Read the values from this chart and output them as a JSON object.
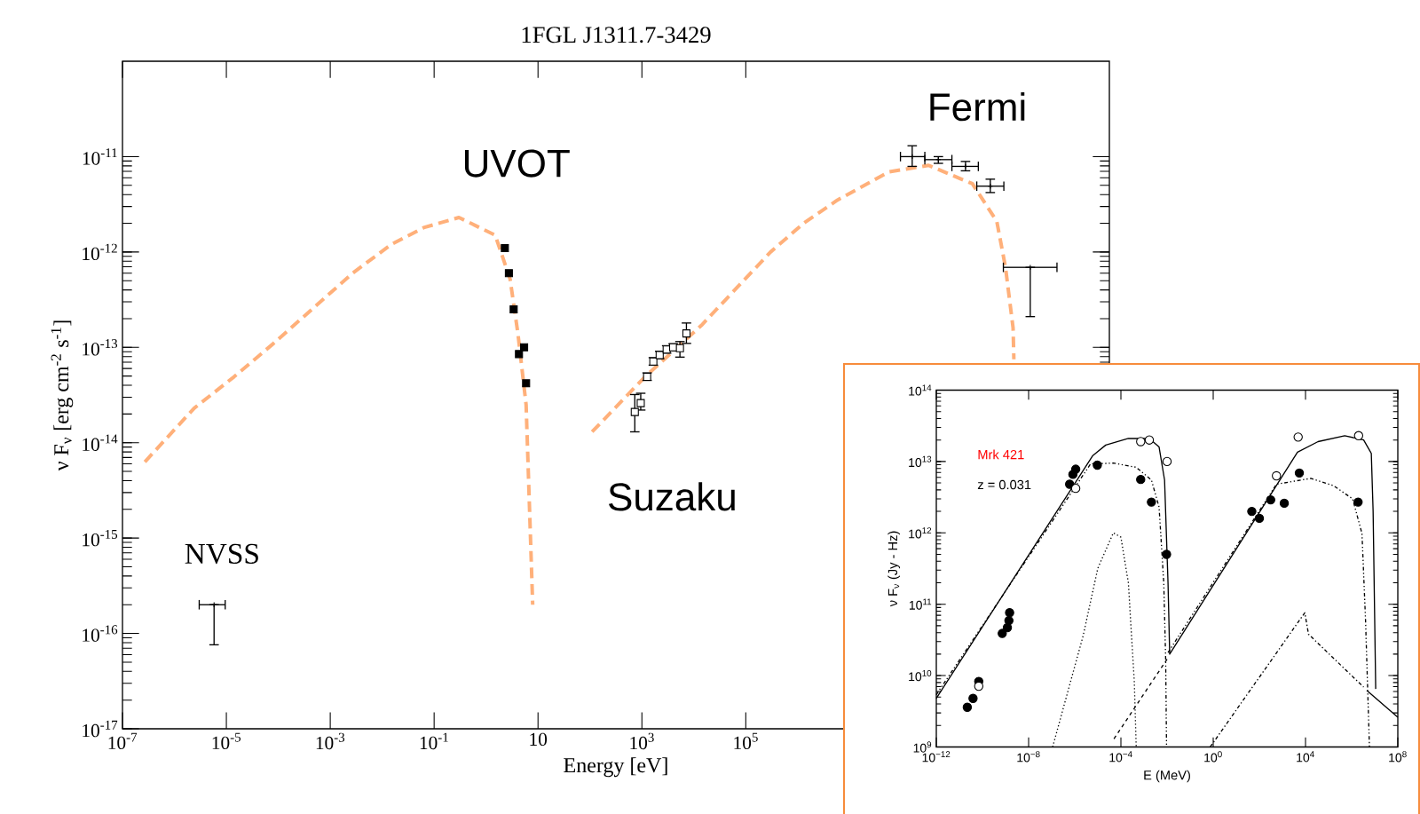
{
  "chart_data": [
    {
      "type": "scatter",
      "title": "1FGL J1311.7-3429",
      "xlabel": "Energy [eV]",
      "ylabel": "ν F$_{ν}$ [erg cm$^{-2}$ s$^{-1}$]",
      "log": "xy",
      "xlim": [
        1e-07,
        1000000000000.0
      ],
      "ylim": [
        1e-17,
        1e-10
      ],
      "xticks": [
        {
          "value": 1e-07,
          "label": "10$^{-7}$"
        },
        {
          "value": 1e-05,
          "label": "10$^{-5}$"
        },
        {
          "value": 0.001,
          "label": "10$^{-3}$"
        },
        {
          "value": 0.1,
          "label": "10$^{-1}$"
        },
        10,
        {
          "value": 1000.0,
          "label": "10$^{3}$"
        },
        {
          "value": 100000.0,
          "label": "10$^{5}$"
        }
      ],
      "yticks": [
        {
          "value": 1e-17,
          "label": "10$^{-17}$"
        },
        {
          "value": 1e-16,
          "label": "10$^{-16}$"
        },
        {
          "value": 1e-15,
          "label": "10$^{-15}$"
        },
        {
          "value": 1e-14,
          "label": "10$^{-14}$"
        },
        {
          "value": 1e-13,
          "label": "10$^{-13}$"
        },
        {
          "value": 1e-12,
          "label": "10$^{-12}$"
        },
        {
          "value": 1e-11,
          "label": "10$^{-11}$"
        }
      ],
      "annotations": [
        "UVOT",
        "Suzaku",
        "Fermi",
        "NVSS"
      ],
      "series": [
        {
          "type": "line",
          "color": "#ffb07a",
          "line_style": "dashed",
          "marker": "none",
          "x": [
            2.7e-07,
            2.4e-06,
            1.4e-05,
            8.1e-05,
            0.0027,
            0.015,
            0.063,
            0.3,
            1.5,
            2.9,
            4.1,
            5.9,
            7.9,
            null,
            110,
            1100,
            14000.0,
            300000.0,
            1300000.0,
            5800000.0,
            56000000.0,
            330000000.0,
            2300000000.0,
            6800000000.0,
            10000000000.0,
            14000000000.0,
            14500000000.0
          ],
          "values": [
            6.3e-15,
            2.3e-14,
            4.9e-14,
            1.1e-13,
            6e-13,
            1.2e-12,
            1.8e-12,
            2.3e-12,
            1.5e-12,
            5.2e-13,
            1.4e-13,
            2.5e-14,
            2e-16,
            null,
            1.3e-14,
            4.8e-14,
            1.7e-13,
            1e-12,
            2e-12,
            3.5e-12,
            6.9e-12,
            8.1e-12,
            5.2e-12,
            2.1e-12,
            6.9e-13,
            1.6e-13,
            7.5e-14
          ]
        },
        {
          "color": "#000000",
          "marker": "square",
          "x": [
            2.3,
            2.75,
            3.4,
            5.4,
            4.3,
            5.9
          ],
          "values": [
            1.1e-12,
            6e-13,
            2.5e-13,
            1e-13,
            8.5e-14,
            4.2e-14
          ]
        },
        {
          "color": "#ffffff",
          "marker": "square",
          "x": [
            730,
            950,
            1260,
            1660,
            2200,
            3000,
            4000,
            5400,
            7200
          ],
          "values": [
            2.1e-14,
            2.6e-14,
            4.9e-14,
            7.1e-14,
            8.3e-14,
            9.5e-14,
            1e-13,
            9.8e-14,
            1.4e-13
          ],
          "errors": [
            [
              1.3e-14,
              3.2e-14
            ],
            [
              2.2e-14,
              3.3e-14
            ],
            [
              4.5e-14,
              5.4e-14
            ],
            [
              6.5e-14,
              7.8e-14
            ],
            [
              7.6e-14,
              9.1e-14
            ],
            [
              8.7e-14,
              1.04e-13
            ],
            [
              9.2e-14,
              1.09e-13
            ],
            [
              7.9e-14,
              1.15e-13
            ],
            [
              1.1e-13,
              1.8e-13
            ]
          ]
        },
        {
          "color": "#000000",
          "marker": "cross",
          "x": [
            160000000.0,
            510000000.0,
            1700000000.0,
            5100000000.0
          ],
          "values": [
            1e-11,
            9.3e-12,
            7.9e-12,
            4.9e-12
          ],
          "errors": [
            [
              7.9e-12,
              1.3e-11
            ],
            [
              8.5e-12,
              1e-11
            ],
            [
              7.1e-12,
              8.9e-12
            ],
            [
              4.2e-12,
              5.8e-12
            ]
          ],
          "xerrors": [
            [
              95000000.0,
              280000000.0
            ],
            [
              280000000.0,
              930000000.0
            ],
            [
              930000000.0,
              3000000000.0
            ],
            [
              2800000000.0,
              9300000000.0
            ]
          ]
        },
        {
          "color": "#000000",
          "marker": "cross",
          "x": [
            5.8e-06,
            30000000000.0
          ],
          "values": [
            2e-16,
            6.9e-13
          ],
          "errors": [
            [
              7.6e-17,
              2e-16
            ],
            [
              2.1e-13,
              6.9e-13
            ]
          ],
          "xerrors": [
            [
              3e-06,
              9.5e-06
            ],
            [
              9100000000.0,
              98000000000.0
            ]
          ]
        }
      ]
    },
    {
      "type": "scatter",
      "xlabel": "E  (MeV)",
      "ylabel": "ν F$_{ν}$ (Jy - Hz)",
      "log": "xy",
      "xlim": [
        1e-12,
        100000000.0
      ],
      "ylim": [
        1000000000.0,
        100000000000000.0
      ],
      "xticks": [
        {
          "value": 1e-12,
          "label": "10$^{−12}$"
        },
        {
          "value": 1e-08,
          "label": "10$^{−8}$"
        },
        {
          "value": 0.0001,
          "label": "10$^{−4}$"
        },
        {
          "value": 1,
          "label": "10$^{0}$"
        },
        {
          "value": 10000.0,
          "label": "10$^{4}$"
        },
        {
          "value": 100000000.0,
          "label": "10$^{8}$"
        }
      ],
      "yticks": [
        {
          "value": 1000000000.0,
          "label": "10$^{9}$"
        },
        {
          "value": 10000000000.0,
          "label": "10$^{10}$"
        },
        {
          "value": 100000000000.0,
          "label": "10$^{11}$"
        },
        {
          "value": 1000000000000.0,
          "label": "10$^{12}$"
        },
        {
          "value": 10000000000000.0,
          "label": "10$^{13}$"
        },
        {
          "value": 100000000000000.0,
          "label": "10$^{14}$"
        }
      ],
      "annotations": [
        "Mrk 421",
        "z = 0.031"
      ],
      "series": [
        {
          "type": "line",
          "color": "#000000",
          "line_style": "solid",
          "marker": "none",
          "x": [
            1e-12,
            5.9e-06,
            2.2e-05,
            0.00021,
            0.0017,
            0.0045,
            0.0078,
            0.011,
            0.013,
            4500,
            35000.0,
            500000.0,
            3300000.0,
            7100000.0,
            8500000.0,
            11000000.0,
            null,
            4500000.0,
            100000000.0
          ],
          "values": [
            4800000000.0,
            12000000000000.0,
            17000000000000.0,
            21000000000000.0,
            21000000000000.0,
            16000000000000.0,
            5500000000000.0,
            200000000000.0,
            20000000000.0,
            13500000000000.0,
            19000000000000.0,
            23000000000000.0,
            20000000000000.0,
            13000000000000.0,
            2000000000000.0,
            6500000000.0,
            null,
            6200000000.0,
            2600000000.0
          ]
        },
        {
          "type": "line",
          "color": "#000000",
          "line_style": "dashdotdot",
          "marker": "none",
          "x": [
            1e-12,
            4.9e-06,
            1e-05,
            4.7e-05,
            0.00046,
            0.0021,
            0.0045,
            0.0072,
            0.0087,
            0.0095,
            null,
            0.011,
            550,
            17000.0,
            160000.0,
            1100000.0,
            2800000.0,
            4000000.0,
            5900000.0
          ],
          "values": [
            5400000000.0,
            9300000000000.0,
            9300000000000.0,
            9500000000000.0,
            8300000000000.0,
            5500000000000.0,
            2300000000000.0,
            200000000000.0,
            17000000000.0,
            1000000000.0,
            null,
            21000000000.0,
            4800000000000.0,
            5800000000000.0,
            4600000000000.0,
            3000000000000.0,
            980000000000.0,
            59000000000.0,
            1000000000.0
          ]
        },
        {
          "type": "line",
          "color": "#000000",
          "line_style": "dotted",
          "marker": "none",
          "x": [
            1.1e-07,
            2.3e-06,
            1e-05,
            4.7e-05,
            0.0001,
            0.00021,
            0.00038,
            0.00046
          ],
          "values": [
            1000000000.0,
            36000000000.0,
            320000000000.0,
            1000000000000.0,
            870000000000.0,
            200000000000.0,
            8300000000.0,
            1000000000.0
          ]
        },
        {
          "type": "line",
          "color": "#000000",
          "line_style": "dashed",
          "marker": "none",
          "x": [
            5e-05,
            0.01
          ],
          "values": [
            1300000000.0,
            17000000000.0
          ]
        },
        {
          "type": "line",
          "color": "#000000",
          "line_style": "dashdot",
          "marker": "none",
          "x": [
            0.74,
            9300.0,
            13500.0,
            3300000.0
          ],
          "values": [
            1000000000.0,
            76000000000.0,
            38000000000.0,
            6900000000.0
          ]
        },
        {
          "color": "#000000",
          "marker": "circle",
          "x": [
            2.2e-11,
            3.9e-11,
            6.9e-11,
            7.2e-10,
            1.2e-09,
            1.4e-09,
            1.5e-09,
            6e-07,
            8.3e-07,
            1.1e-06,
            9.5e-06,
            0.00072,
            0.0021,
            0.0095,
            47,
            100,
            310,
            1200,
            5400,
            1900000.0
          ],
          "values": [
            3600000000.0,
            4800000000.0,
            8300000000.0,
            39000000000.0,
            47000000000.0,
            59000000000.0,
            76000000000.0,
            4800000000000.0,
            6600000000000.0,
            7800000000000.0,
            8900000000000.0,
            5600000000000.0,
            2700000000000.0,
            500000000000.0,
            2000000000000.0,
            1600000000000.0,
            2900000000000.0,
            2600000000000.0,
            6900000000000.0,
            2700000000000.0
          ]
        },
        {
          "color": "#ffffff",
          "marker": "circle",
          "x": [
            6.9e-11,
            1.1e-06,
            0.00072,
            0.0017,
            0.01,
            550,
            4800,
            2000000.0
          ],
          "values": [
            7100000000.0,
            4200000000000.0,
            19000000000000.0,
            20000000000000.0,
            10000000000000.0,
            6300000000000.0,
            22000000000000.0,
            23000000000000.0
          ]
        }
      ]
    }
  ]
}
